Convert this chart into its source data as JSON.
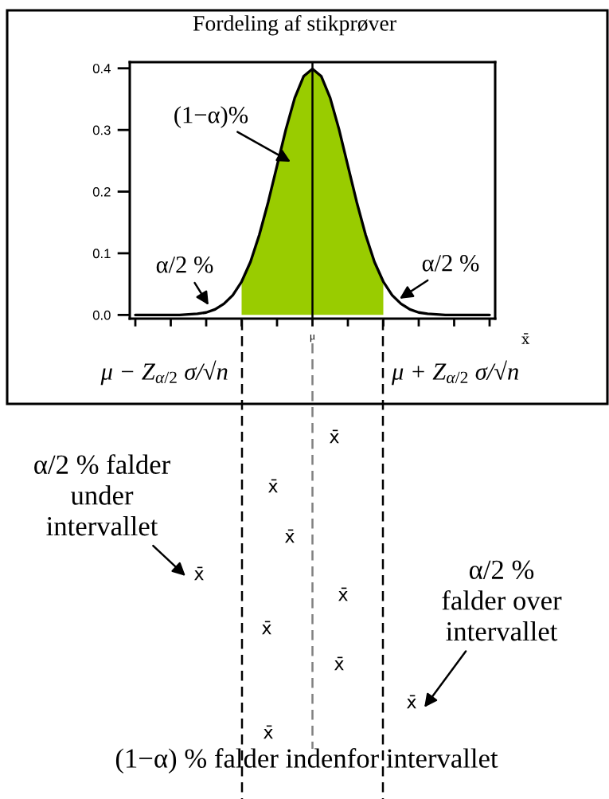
{
  "chart_data": [
    {
      "type": "line",
      "title": "Fordeling af stikprøver",
      "xlabel": "x̄",
      "categories": [
        null,
        null,
        null,
        null,
        null,
        null,
        null,
        null,
        null,
        null,
        null,
        null,
        null,
        null,
        null,
        null,
        null,
        null,
        null,
        null,
        "μ",
        null,
        null,
        null,
        null,
        null,
        null,
        null,
        null,
        null,
        null,
        null,
        null,
        null,
        null,
        null,
        null,
        null,
        null,
        null,
        null
      ],
      "series": [
        {
          "type": "area",
          "color": "#99cc00",
          "values": [
            null,
            null,
            null,
            null,
            null,
            null,
            null,
            null,
            null,
            null,
            null,
            null,
            0.054,
            0.086,
            0.13,
            0.183,
            0.242,
            0.301,
            0.352,
            0.387,
            0.399,
            0.387,
            0.352,
            0.301,
            0.242,
            0.183,
            0.13,
            0.086,
            0.054,
            null,
            null,
            null,
            null,
            null,
            null,
            null,
            null,
            null,
            null,
            null,
            null
          ]
        },
        {
          "type": "line",
          "color": "#000000",
          "values": [
            0.0,
            0.0,
            0.0,
            0.0,
            0.0,
            0.0,
            0.001,
            0.002,
            0.004,
            0.009,
            0.018,
            0.032,
            0.054,
            0.086,
            0.13,
            0.183,
            0.242,
            0.301,
            0.352,
            0.387,
            0.399,
            0.387,
            0.352,
            0.301,
            0.242,
            0.183,
            0.13,
            0.086,
            0.054,
            0.032,
            0.018,
            0.009,
            0.004,
            0.002,
            0.001,
            0.0,
            0.0,
            0.0,
            0.0,
            0.0,
            0.0
          ]
        }
      ],
      "ylim": [
        -0.006,
        0.41
      ],
      "yticks": [
        {
          "value": 0,
          "label": "0.0"
        },
        {
          "value": 0.1,
          "label": "0.1"
        },
        {
          "value": 0.2,
          "label": "0.2"
        },
        {
          "value": 0.3,
          "label": "0.3"
        },
        {
          "value": 0.4,
          "label": "0.4"
        }
      ],
      "ref_lines": [
        {
          "axis": "x",
          "value": "μ",
          "color": "#000000"
        }
      ],
      "annotations": [
        "(1−α)%",
        "α/2 %",
        "α/2 %",
        "μ − Z$_{α/2}$ σ/√n",
        "μ + Z$_{α/2}$ σ/√n"
      ]
    },
    {
      "type": "other",
      "annotations": [
        "α/2 % falder\nunder\nintervallet",
        "α/2 %\nfalder over\nintervallet",
        "(1−α) % falder indenfor intervallet",
        "x̄",
        "x̄",
        "x̄",
        "x̄",
        "x̄",
        "x̄",
        "x̄",
        "x̄",
        "x̄"
      ]
    }
  ]
}
